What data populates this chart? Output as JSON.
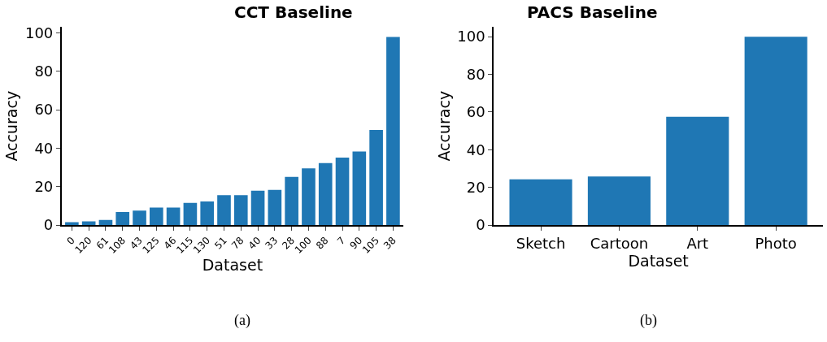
{
  "chart_data": [
    {
      "type": "bar",
      "title": "CCT Baseline",
      "xlabel": "Dataset",
      "ylabel": "Accuracy",
      "categories": [
        "0",
        "120",
        "61",
        "108",
        "43",
        "125",
        "46",
        "115",
        "130",
        "51",
        "78",
        "40",
        "33",
        "28",
        "100",
        "88",
        "7",
        "90",
        "105",
        "38"
      ],
      "values": [
        1.5,
        1.9,
        2.7,
        6.8,
        7.5,
        9.1,
        9.1,
        11.5,
        12.3,
        15.5,
        15.5,
        17.9,
        18.3,
        25.1,
        29.5,
        32.3,
        35.1,
        38.3,
        49.5,
        97.9
      ],
      "color": "#1f77b4",
      "ylim": [
        0,
        103
      ],
      "yticks": [
        0,
        20,
        40,
        60,
        80,
        100
      ],
      "annotations": [
        "(a)"
      ]
    },
    {
      "type": "bar",
      "title": "PACS Baseline",
      "xlabel": "Dataset",
      "ylabel": "Accuracy",
      "categories": [
        "Sketch",
        "Cartoon",
        "Art",
        "Photo"
      ],
      "values": [
        24.3,
        25.8,
        57.4,
        99.9
      ],
      "color": "#1f77b4",
      "ylim": [
        0,
        105
      ],
      "yticks": [
        0,
        20,
        40,
        60,
        80,
        100
      ],
      "annotations": [
        "(b)"
      ]
    }
  ]
}
